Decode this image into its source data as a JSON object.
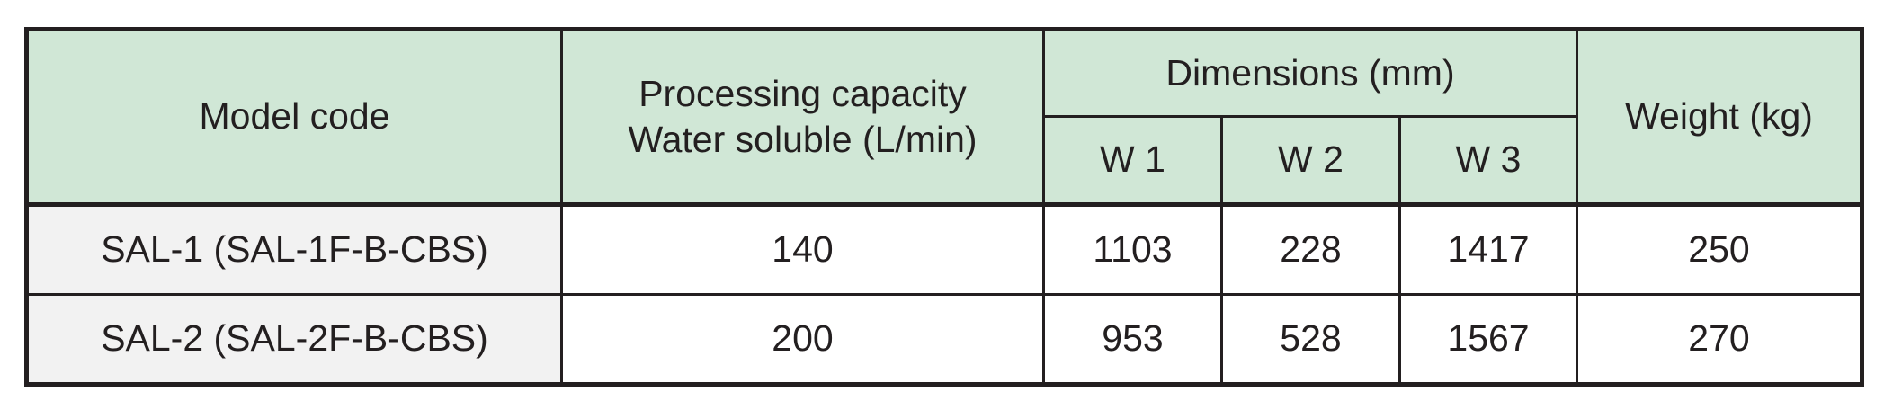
{
  "table": {
    "headers": {
      "model_code": "Model code",
      "capacity_line1": "Processing capacity",
      "capacity_line2": "Water soluble (L/min)",
      "dimensions": "Dimensions (mm)",
      "w1": "W 1",
      "w2": "W 2",
      "w3": "W 3",
      "weight": "Weight (kg)"
    },
    "rows": [
      {
        "model": "SAL-1 (SAL-1F-B-CBS)",
        "capacity": "140",
        "w1": "1103",
        "w2": "228",
        "w3": "1417",
        "weight": "250"
      },
      {
        "model": "SAL-2 (SAL-2F-B-CBS)",
        "capacity": "200",
        "w1": "953",
        "w2": "528",
        "w3": "1567",
        "weight": "270"
      }
    ],
    "colors": {
      "header_bg": "#d0e7d6",
      "model_col_bg": "#f2f2f2",
      "border": "#231f20"
    }
  }
}
